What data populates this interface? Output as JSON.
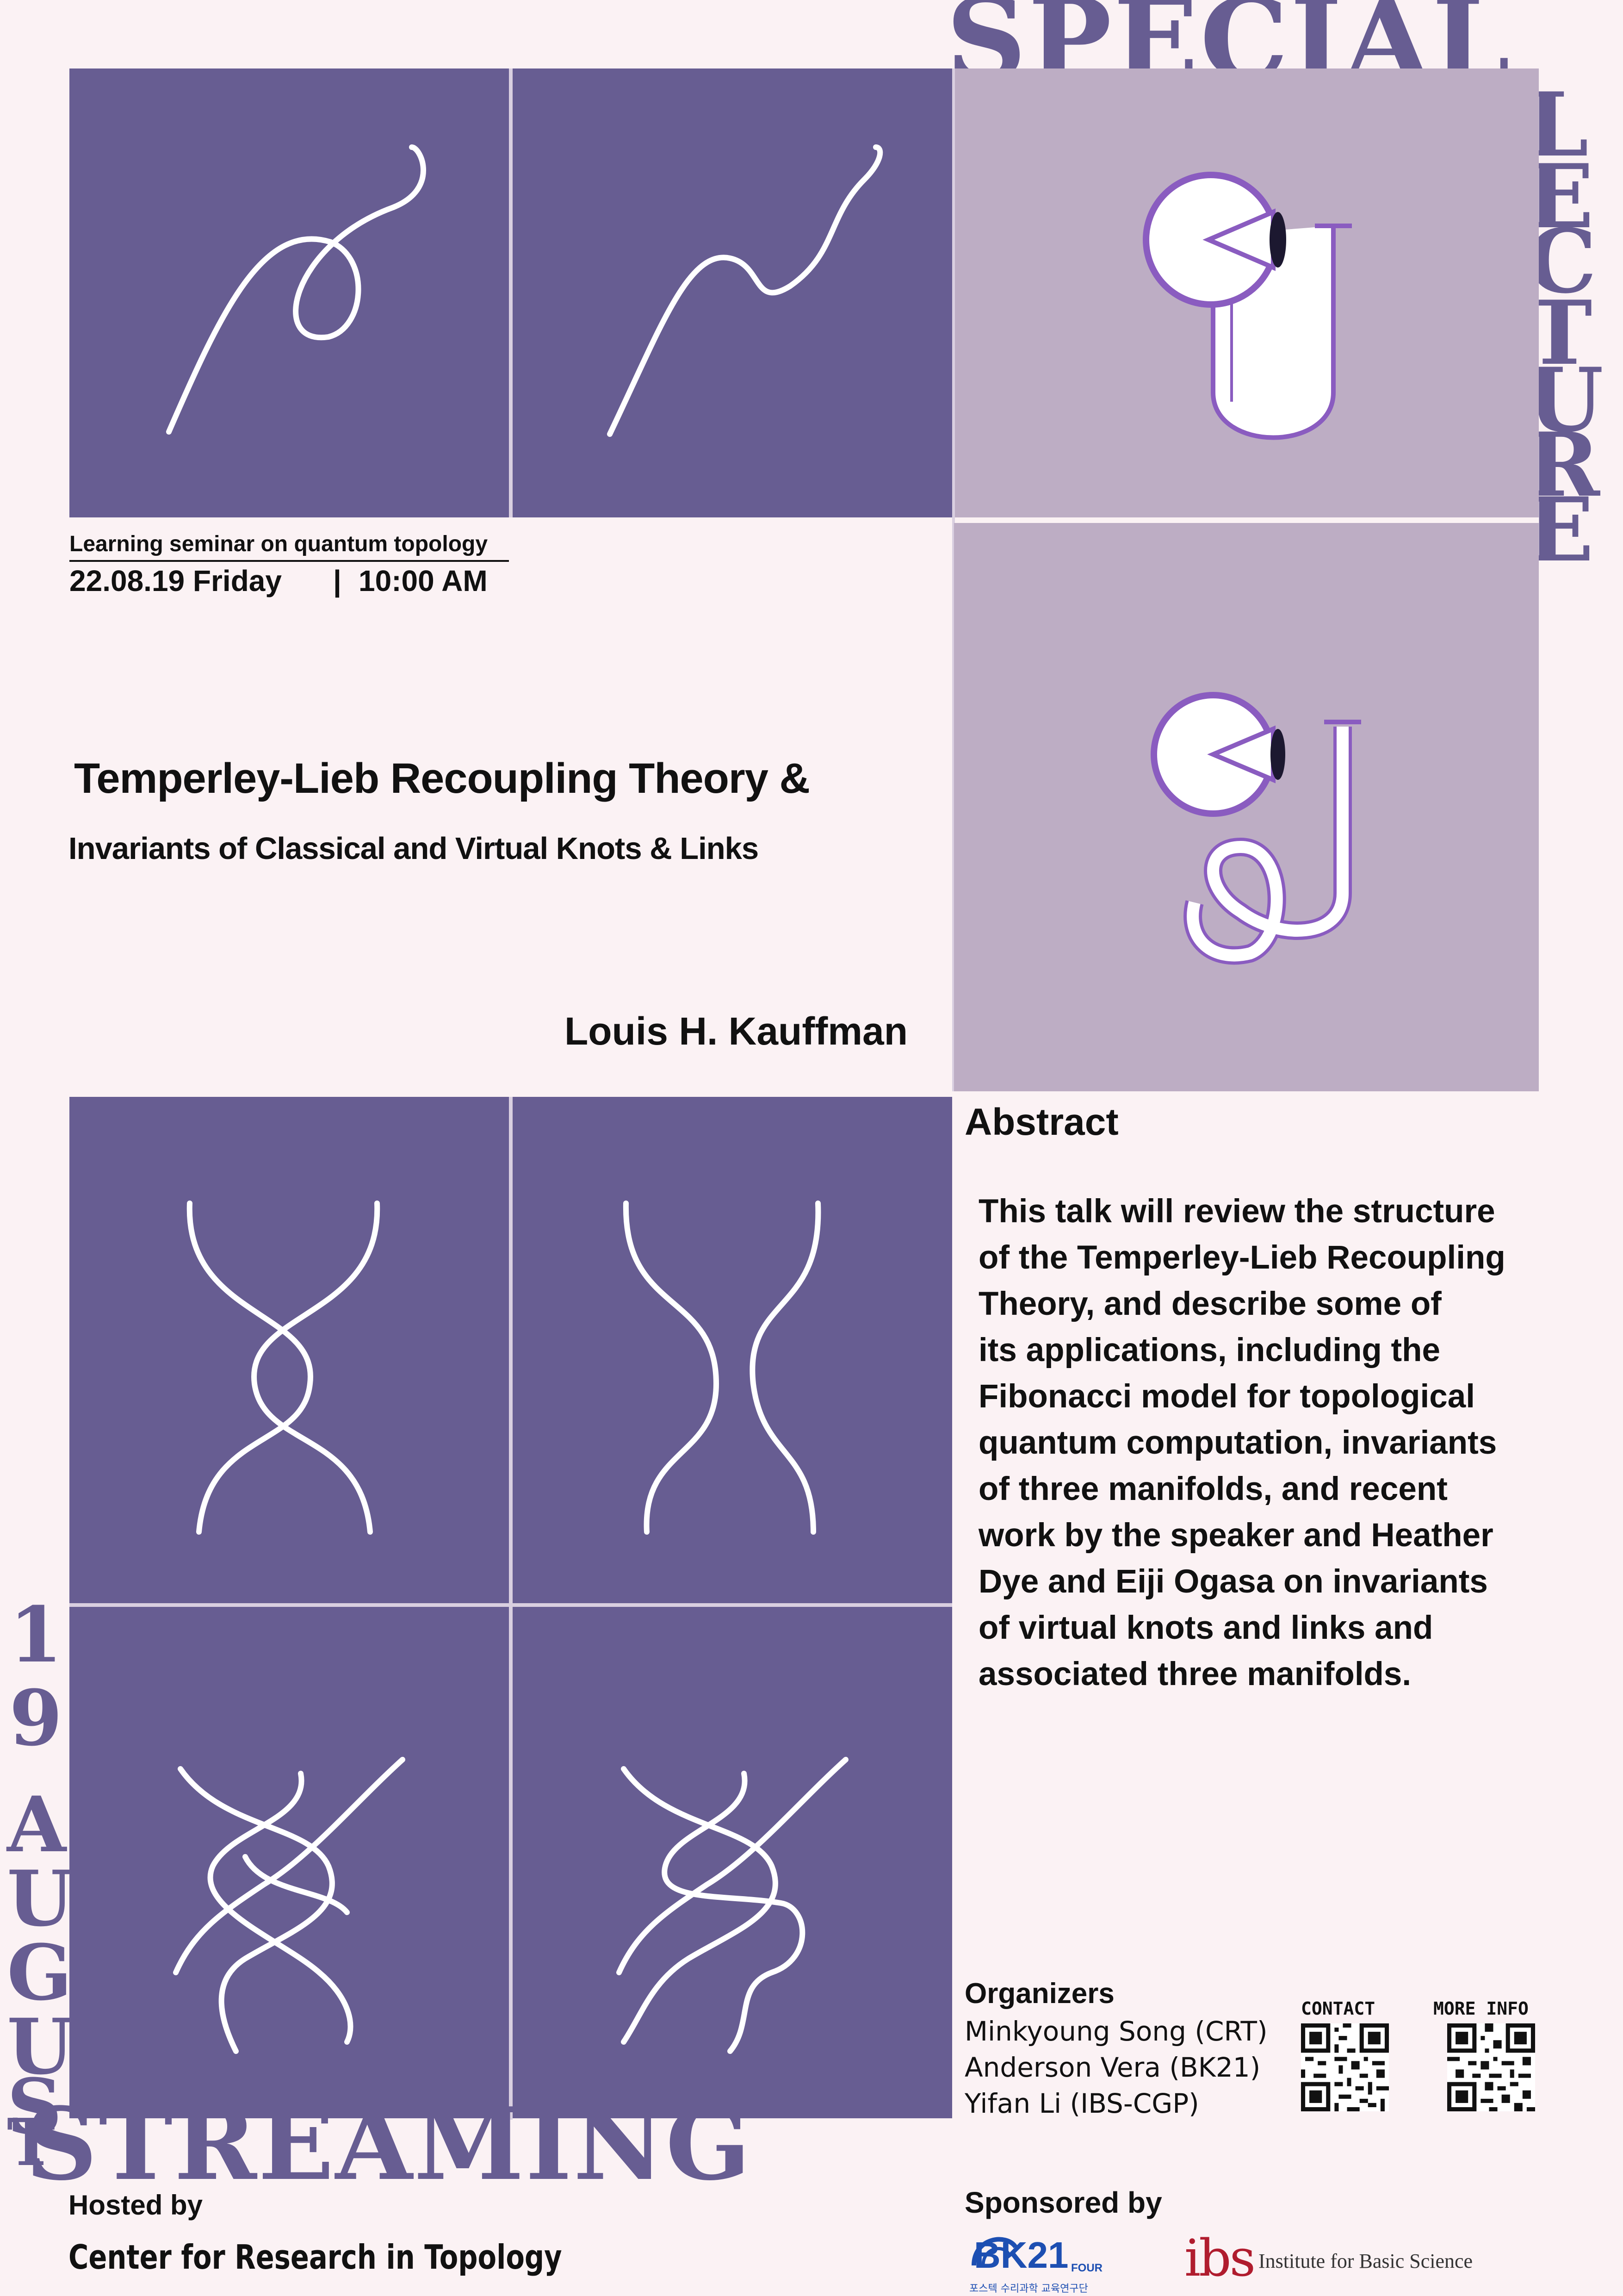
{
  "header": {
    "title_word": "SPECIAL",
    "vertical_word": [
      "L",
      "E",
      "C",
      "T",
      "U",
      "R",
      "E"
    ]
  },
  "event": {
    "series": "Learning seminar on quantum topology",
    "date": "22.08.19 Friday",
    "separator": "|",
    "time": "10:00 AM"
  },
  "talk": {
    "title_line1": "Temperley-Lieb Recoupling Theory &",
    "title_line2": "Invariants of Classical and Virtual Knots & Links",
    "speaker": "Louis H. Kauffman"
  },
  "abstract": {
    "heading": "Abstract",
    "lines": [
      "This talk will review the structure",
      "of the Temperley-Lieb Recoupling",
      "Theory, and describe some of",
      "its applications, including the",
      "Fibonacci model for topological",
      "quantum computation, invariants",
      "of three manifolds, and recent",
      "work by the speaker and Heather",
      "Dye and Eiji Ogasa on invariants",
      "of virtual knots and links and",
      "associated three manifolds."
    ]
  },
  "side_date": {
    "day": [
      "1",
      "9"
    ],
    "month": [
      "A",
      "U",
      "G",
      "U",
      "S",
      "T"
    ]
  },
  "streaming": "STREAMING",
  "organizers": {
    "heading": "Organizers",
    "names": [
      "Minkyoung Song (CRT)",
      "Anderson Vera (BK21)",
      "Yifan Li (IBS-CGP)"
    ]
  },
  "qr_labels": {
    "contact": "CONTACT",
    "more_info": "MORE INFO"
  },
  "hosted": {
    "label": "Hosted by",
    "name": "Center for Research in Topology"
  },
  "sponsored": {
    "label": "Sponsored by",
    "bk21": "BK21",
    "bk21_four": "FOUR",
    "bk21_sub": "포스텍 수리과학 교육연구단",
    "ibs_logo": "ibs",
    "ibs_name": "Institute for Basic Science"
  },
  "colors": {
    "purple": "#675d92",
    "lilac": "#bdadc4",
    "background": "#fbf2f4",
    "accent": "#8a5cc0"
  }
}
